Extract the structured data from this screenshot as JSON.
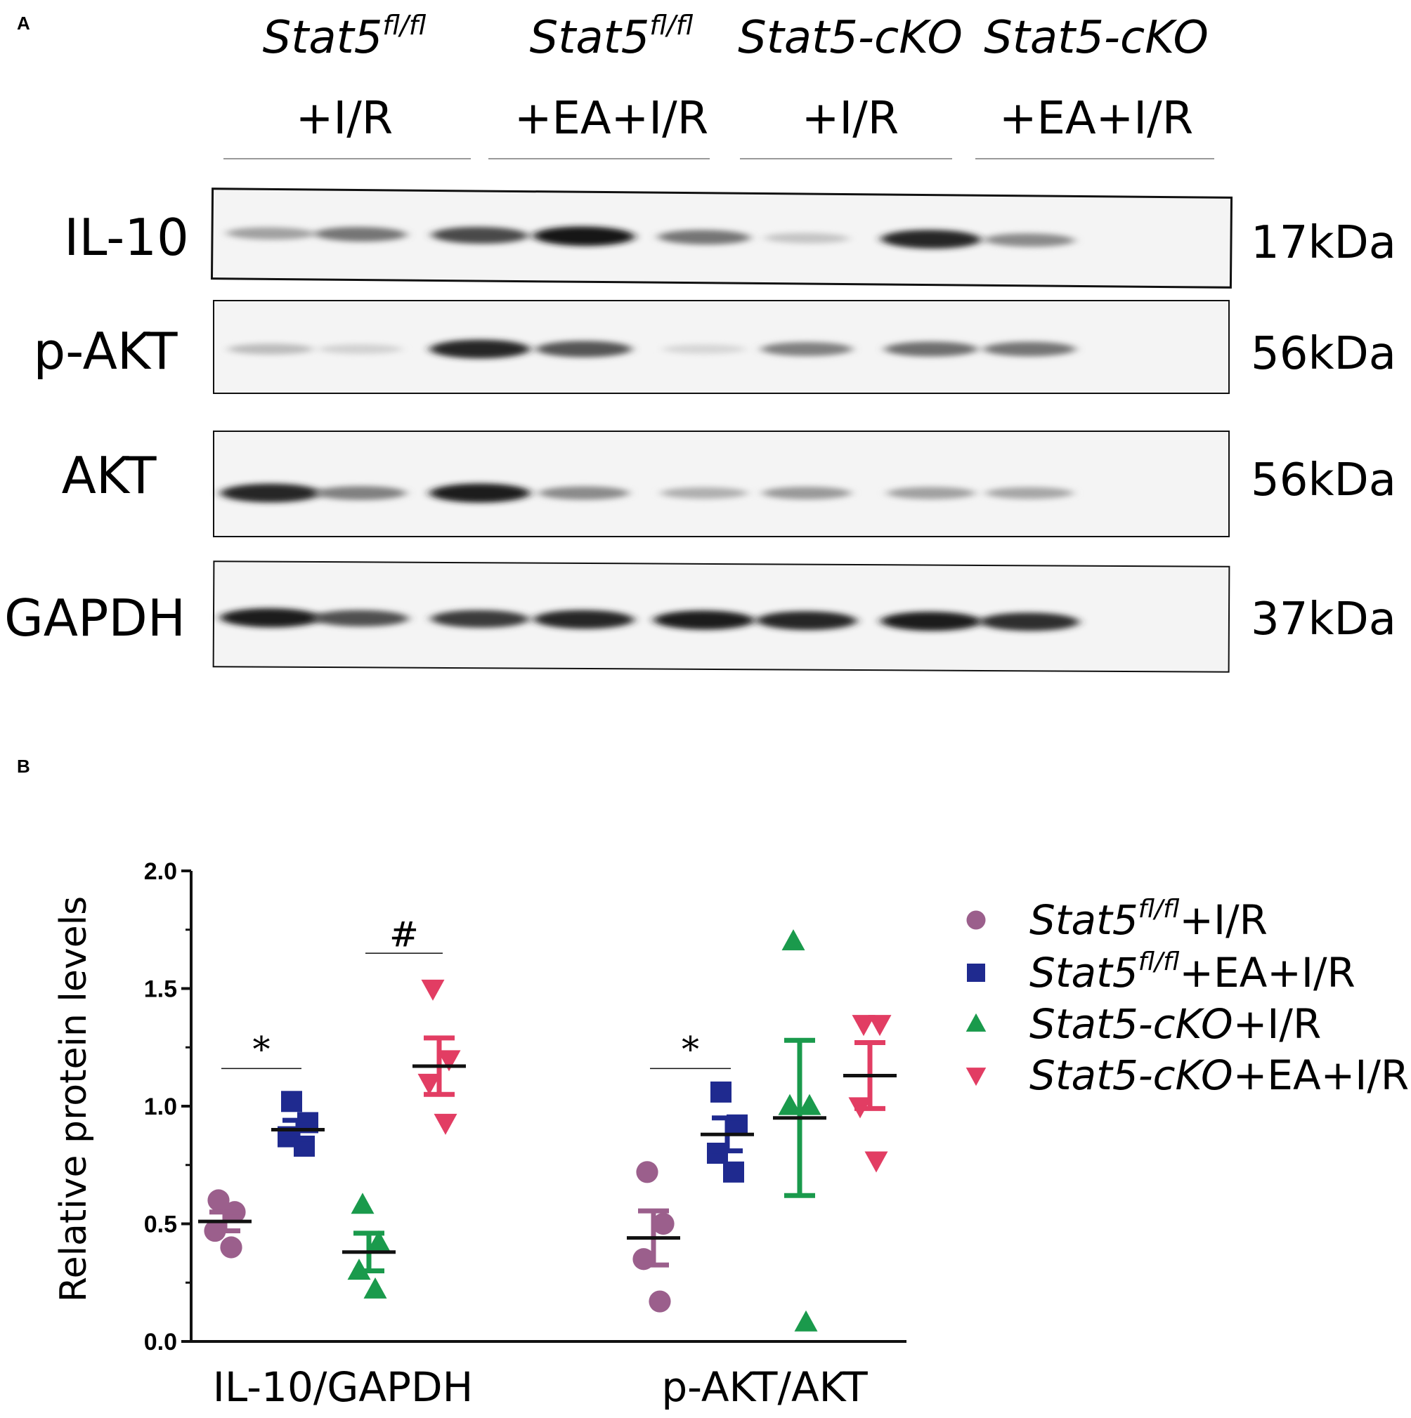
{
  "figure": {
    "panel_a_label": "A",
    "panel_b_label": "B"
  },
  "blot": {
    "groups": [
      {
        "name": "Stat5",
        "sup": "fl/fl",
        "treatment": "+I/R"
      },
      {
        "name": "Stat5",
        "sup": "fl/fl",
        "treatment": "+EA+I/R"
      },
      {
        "name": "Stat5-cKO",
        "sup": "",
        "treatment": "+I/R"
      },
      {
        "name": "Stat5-cKO",
        "sup": "",
        "treatment": "+EA+I/R"
      }
    ],
    "rows": [
      {
        "label": "IL-10",
        "kda": "17kDa",
        "intensities": [
          0.35,
          0.55,
          0.75,
          0.98,
          0.55,
          0.18,
          0.92,
          0.45
        ]
      },
      {
        "label": "p-AKT",
        "kda": "56kDa",
        "intensities": [
          0.22,
          0.12,
          0.92,
          0.7,
          0.1,
          0.5,
          0.58,
          0.55
        ]
      },
      {
        "label": "AKT",
        "kda": "56kDa",
        "intensities": [
          0.92,
          0.5,
          0.95,
          0.45,
          0.28,
          0.38,
          0.35,
          0.32
        ]
      },
      {
        "label": "GAPDH",
        "kda": "37kDa",
        "intensities": [
          0.95,
          0.72,
          0.82,
          0.92,
          0.95,
          0.92,
          0.95,
          0.88
        ]
      }
    ]
  },
  "chart_data": {
    "type": "scatter",
    "ylabel": "Relative protein levels",
    "ylim": [
      0,
      2.0
    ],
    "yticks": [
      "0.0",
      "0.5",
      "1.0",
      "1.5",
      "2.0"
    ],
    "categories": [
      "IL-10/GAPDH",
      "p-AKT/AKT"
    ],
    "legend_position": "right",
    "series": [
      {
        "name": "Stat5",
        "sup": "fl/fl",
        "suffix": "+I/R",
        "marker": "circle",
        "color": "#9b5f8c",
        "points": [
          [
            0.6,
            0.55,
            0.47,
            0.4
          ],
          [
            0.72,
            0.5,
            0.35,
            0.17
          ]
        ],
        "mean": [
          0.51,
          0.44
        ],
        "sem": [
          0.04,
          0.115
        ]
      },
      {
        "name": "Stat5",
        "sup": "fl/fl",
        "suffix": "+EA+I/R",
        "marker": "square",
        "color": "#1f2a8f",
        "points": [
          [
            1.02,
            0.93,
            0.87,
            0.83
          ],
          [
            1.06,
            0.92,
            0.8,
            0.72
          ]
        ],
        "mean": [
          0.9,
          0.88
        ],
        "sem": [
          0.04,
          0.07
        ]
      },
      {
        "name": "Stat5-cKO",
        "sup": "",
        "suffix": "+I/R",
        "marker": "triangle-up",
        "color": "#1a9a4c",
        "points": [
          [
            0.58,
            0.42,
            0.3,
            0.22
          ],
          [
            1.7,
            1.0,
            1.0,
            0.08
          ]
        ],
        "mean": [
          0.38,
          0.95
        ],
        "sem": [
          0.08,
          0.33
        ]
      },
      {
        "name": "Stat5-cKO",
        "sup": "",
        "suffix": "+EA+I/R",
        "marker": "triangle-down",
        "color": "#e23d63",
        "points": [
          [
            1.5,
            1.2,
            1.1,
            0.93
          ],
          [
            1.35,
            1.35,
            1.0,
            0.77
          ]
        ],
        "mean": [
          1.17,
          1.13
        ],
        "sem": [
          0.12,
          0.14
        ]
      }
    ],
    "annotations": [
      {
        "text": "*",
        "category": 0,
        "between": [
          0,
          1
        ],
        "y": 1.16
      },
      {
        "text": "#",
        "category": 0,
        "between": [
          2,
          3
        ],
        "y": 1.65
      },
      {
        "text": "*",
        "category": 1,
        "between": [
          0,
          1
        ],
        "y": 1.16
      }
    ]
  }
}
